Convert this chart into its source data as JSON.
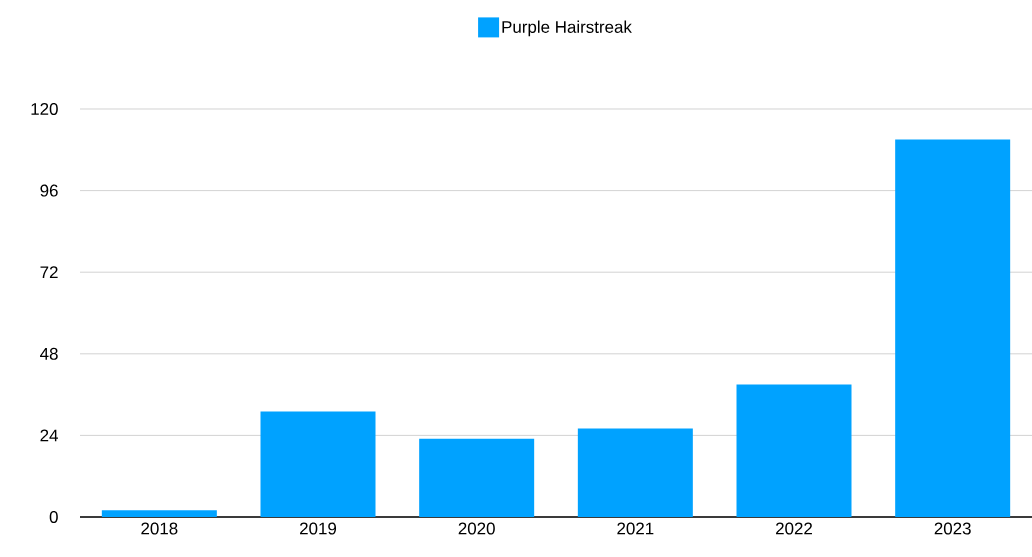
{
  "chart_data": {
    "type": "bar",
    "categories": [
      "2018",
      "2019",
      "2020",
      "2021",
      "2022",
      "2023"
    ],
    "series": [
      {
        "name": "Purple Hairstreak",
        "color": "#00a2ff",
        "values": [
          2,
          31,
          23,
          26,
          39,
          111
        ]
      }
    ],
    "ylim": [
      0,
      120
    ],
    "yticks": [
      0,
      24,
      48,
      72,
      96,
      120
    ],
    "grid": "y",
    "legend": "top"
  }
}
